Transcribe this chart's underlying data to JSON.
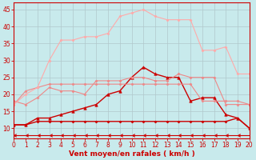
{
  "xlabel": "Vent moyen/en rafales ( km/h )",
  "ylabel": "",
  "xlim": [
    0,
    20
  ],
  "ylim": [
    7,
    47
  ],
  "yticks": [
    10,
    15,
    20,
    25,
    30,
    35,
    40,
    45
  ],
  "xticks": [
    0,
    1,
    2,
    3,
    4,
    5,
    6,
    7,
    8,
    9,
    10,
    11,
    12,
    13,
    14,
    15,
    16,
    17,
    18,
    19,
    20
  ],
  "bg_color": "#c8eaec",
  "grid_color": "#b0c8cc",
  "series": [
    {
      "x": [
        0,
        1,
        2,
        3,
        4,
        5,
        6,
        7,
        8,
        9,
        10,
        11,
        12,
        13,
        14,
        15,
        16,
        17,
        18,
        19,
        20
      ],
      "y": [
        8,
        8,
        8,
        8,
        8,
        8,
        8,
        8,
        8,
        8,
        8,
        8,
        8,
        8,
        8,
        8,
        8,
        8,
        8,
        8,
        8
      ],
      "color": "#cc0000",
      "marker": 4,
      "marker_size": 2.5,
      "linewidth": 0.8,
      "linestyle": "-"
    },
    {
      "x": [
        0,
        1,
        2,
        3,
        4,
        5,
        6,
        7,
        8,
        9,
        10,
        11,
        12,
        13,
        14,
        15,
        16,
        17,
        18,
        19,
        20
      ],
      "y": [
        11,
        11,
        12,
        12,
        12,
        12,
        12,
        12,
        12,
        12,
        12,
        12,
        12,
        12,
        12,
        12,
        12,
        12,
        12,
        13,
        10
      ],
      "color": "#cc0000",
      "marker": "D",
      "marker_size": 1.5,
      "linewidth": 1.0,
      "linestyle": "-"
    },
    {
      "x": [
        0,
        1,
        2,
        3,
        4,
        5,
        6,
        7,
        8,
        9,
        10,
        11,
        12,
        13,
        14,
        15,
        16,
        17,
        18,
        19,
        20
      ],
      "y": [
        11,
        11,
        13,
        13,
        14,
        15,
        16,
        17,
        20,
        21,
        25,
        28,
        26,
        25,
        25,
        18,
        19,
        19,
        14,
        13,
        10
      ],
      "color": "#cc0000",
      "marker": "^",
      "marker_size": 2.5,
      "linewidth": 1.0,
      "linestyle": "-"
    },
    {
      "x": [
        0,
        1,
        2,
        3,
        4,
        5,
        6,
        7,
        8,
        9,
        10,
        11,
        12,
        13,
        14,
        15,
        16,
        17,
        18,
        19,
        20
      ],
      "y": [
        18,
        17,
        19,
        22,
        21,
        21,
        20,
        24,
        24,
        24,
        25,
        25,
        24,
        24,
        26,
        25,
        25,
        25,
        17,
        17,
        17
      ],
      "color": "#ee8888",
      "marker": "D",
      "marker_size": 1.5,
      "linewidth": 0.8,
      "linestyle": "-"
    },
    {
      "x": [
        0,
        1,
        2,
        3,
        4,
        5,
        6,
        7,
        8,
        9,
        10,
        11,
        12,
        13,
        14,
        15,
        16,
        17,
        18,
        19,
        20
      ],
      "y": [
        17,
        21,
        22,
        23,
        23,
        23,
        23,
        23,
        23,
        23,
        23,
        23,
        23,
        23,
        23,
        23,
        18,
        18,
        18,
        18,
        17
      ],
      "color": "#ee8888",
      "marker": "D",
      "marker_size": 1.5,
      "linewidth": 0.8,
      "linestyle": "-"
    },
    {
      "x": [
        0,
        1,
        2,
        3,
        4,
        5,
        6,
        7,
        8,
        9,
        10,
        11,
        12,
        13,
        14,
        15,
        16,
        17,
        18,
        19,
        20
      ],
      "y": [
        17,
        20,
        22,
        30,
        36,
        36,
        37,
        37,
        38,
        43,
        44,
        45,
        43,
        42,
        42,
        42,
        33,
        33,
        34,
        26,
        26
      ],
      "color": "#ffaaaa",
      "marker": "D",
      "marker_size": 1.5,
      "linewidth": 0.8,
      "linestyle": "-"
    }
  ]
}
